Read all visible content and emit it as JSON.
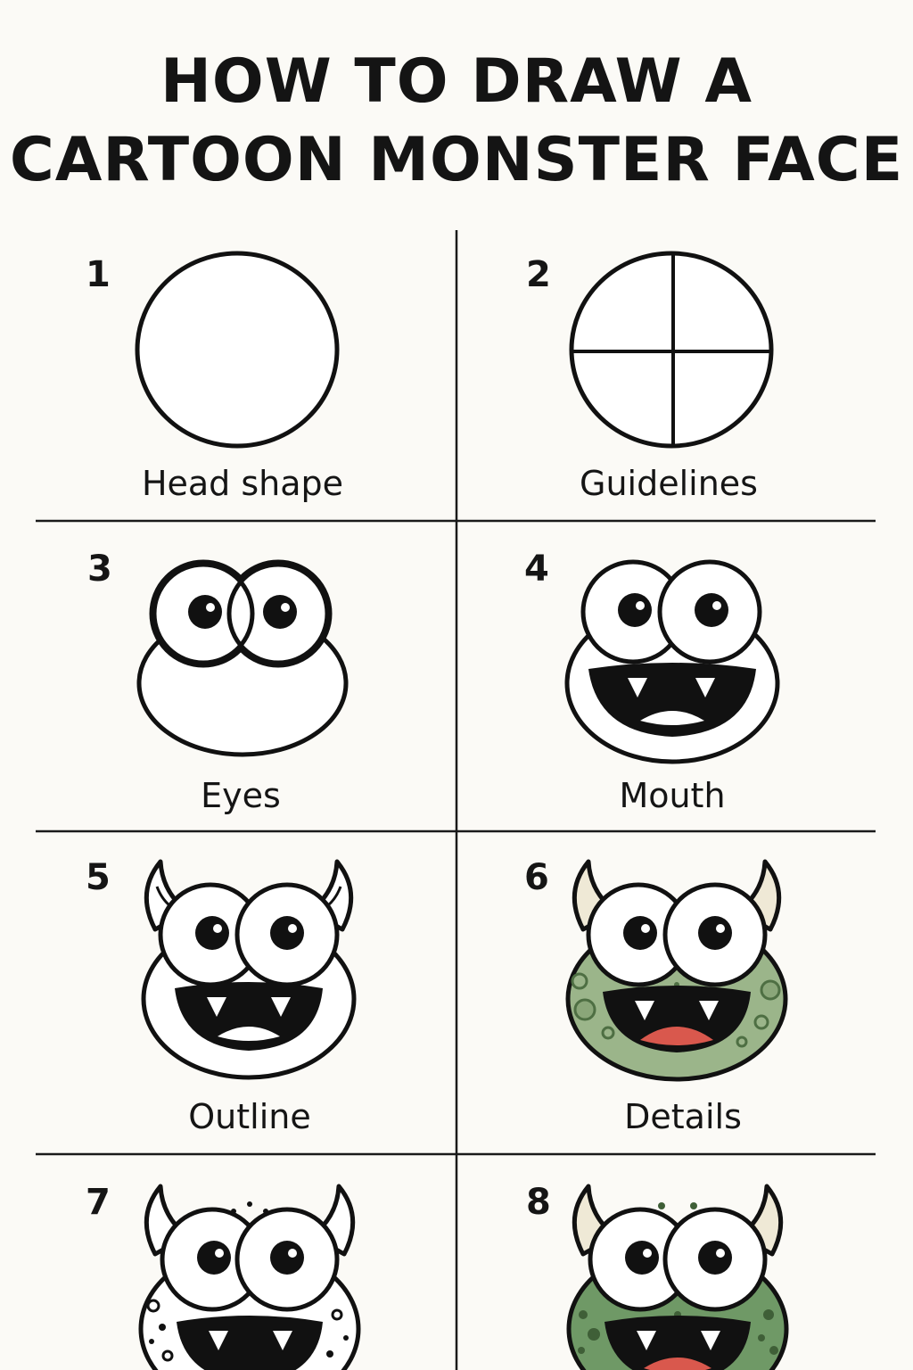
{
  "page": {
    "title_line1": "HOW TO DRAW A",
    "title_line2": "CARTOON MONSTER FACE"
  },
  "colors": {
    "background": "#fbfaf6",
    "ink": "#111111",
    "monster_green": "#9bb58a",
    "monster_green_dark": "#6f9966",
    "horn": "#efe9d6",
    "tongue": "#d9584d"
  },
  "steps": [
    {
      "number": "1",
      "label": "Head shape",
      "drawing": "head-circle-icon"
    },
    {
      "number": "2",
      "label": "Guidelines",
      "drawing": "guidelines-icon"
    },
    {
      "number": "3",
      "label": "Eyes",
      "drawing": "eyes-icon"
    },
    {
      "number": "4",
      "label": "Mouth",
      "drawing": "mouth-icon"
    },
    {
      "number": "5",
      "label": "Outline",
      "drawing": "horns-outline-icon"
    },
    {
      "number": "6",
      "label": "Details",
      "drawing": "colored-monster-icon"
    },
    {
      "number": "7",
      "label": "",
      "drawing": "spotted-outline-monster-icon"
    },
    {
      "number": "8",
      "label": "",
      "drawing": "final-colored-monster-icon"
    }
  ]
}
